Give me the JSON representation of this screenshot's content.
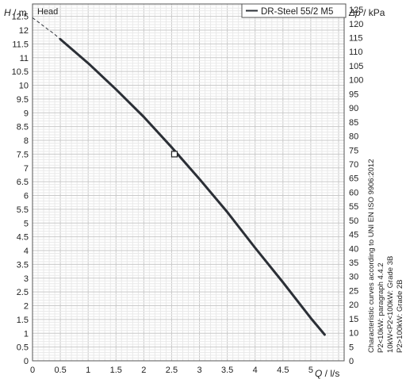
{
  "header_label": "Head",
  "chart_data": {
    "type": "line",
    "xlabel_var": "Q",
    "xlabel_unit": " / l/s",
    "ylabel_var": "H",
    "ylabel_unit": " / m",
    "y2label_var": "Δp",
    "y2label_unit": " / kPa",
    "xlim": [
      0,
      5.6
    ],
    "ylim": [
      0,
      12.95
    ],
    "y2lim": [
      0,
      127
    ],
    "x_ticks": [
      0,
      0.5,
      1,
      1.5,
      2,
      2.5,
      3,
      3.5,
      4,
      4.5,
      5
    ],
    "x_tick_labels": [
      "0",
      "0.5",
      "1",
      "1.5",
      "2",
      "2.5",
      "3",
      "3.5",
      "4",
      "4.5",
      "5"
    ],
    "y_ticks": [
      0,
      0.5,
      1,
      1.5,
      2,
      2.5,
      3,
      3.5,
      4,
      4.5,
      5,
      5.5,
      6,
      6.5,
      7,
      7.5,
      8,
      8.5,
      9,
      9.5,
      10,
      10.5,
      11,
      11.5,
      12,
      12.5
    ],
    "y_tick_labels": [
      "0",
      "0.5",
      "1",
      "1.5",
      "2",
      "2.5",
      "3",
      "3.5",
      "4",
      "4.5",
      "5",
      "5.5",
      "6",
      "6.5",
      "7",
      "7.5",
      "8",
      "8.5",
      "9",
      "9.5",
      "10",
      "10.5",
      "11",
      "11.5",
      "12",
      "12.5"
    ],
    "y2_ticks": [
      0,
      5,
      10,
      15,
      20,
      25,
      30,
      35,
      40,
      45,
      50,
      55,
      60,
      65,
      70,
      75,
      80,
      85,
      90,
      95,
      100,
      105,
      110,
      115,
      120,
      125
    ],
    "y2_tick_labels": [
      "0",
      "5",
      "10",
      "15",
      "20",
      "25",
      "30",
      "35",
      "40",
      "45",
      "50",
      "55",
      "60",
      "65",
      "70",
      "75",
      "80",
      "85",
      "90",
      "95",
      "100",
      "105",
      "110",
      "115",
      "120",
      "125"
    ],
    "grid": true,
    "legend_position": "top-right",
    "series": [
      {
        "name": "DR-Steel 55/2 M5",
        "color": "#2b2f36",
        "dashed_x": [
          0,
          0.12,
          0.25,
          0.38,
          0.5
        ],
        "dashed_y": [
          12.45,
          12.27,
          12.07,
          11.88,
          11.67
        ],
        "x": [
          0.5,
          1.0,
          1.5,
          2.0,
          2.5,
          3.0,
          3.5,
          4.0,
          4.5,
          5.0,
          5.25
        ],
        "y": [
          11.67,
          10.8,
          9.85,
          8.85,
          7.75,
          6.6,
          5.4,
          4.1,
          2.85,
          1.55,
          0.95
        ]
      }
    ],
    "marker": {
      "x": 2.55,
      "y": 7.5
    },
    "notes": [
      "Characteristic curves according to UNI EN ISO 9906:2012",
      "P2<10kW: paragraph 4.4.2",
      "10kW<P2<100kW: Grade 3B",
      "P2>100kW: Grade 2B"
    ]
  }
}
